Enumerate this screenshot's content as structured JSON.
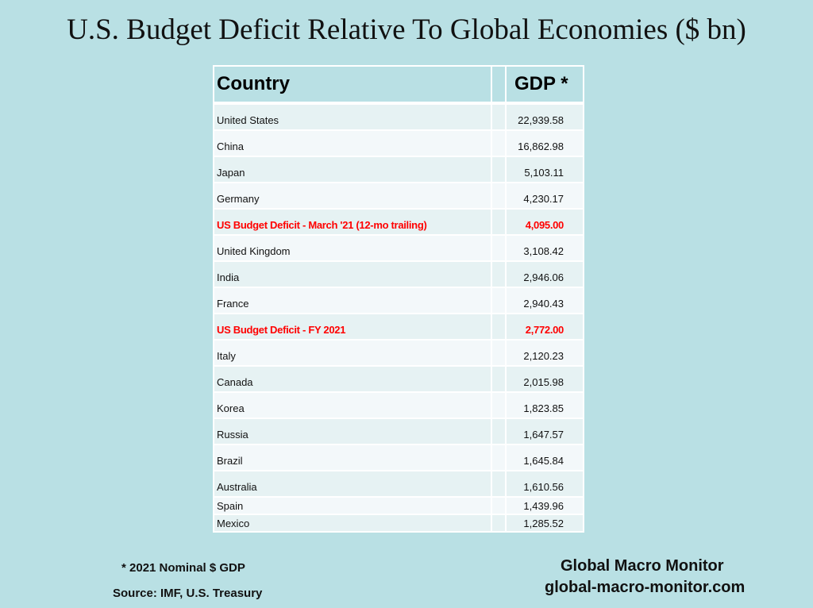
{
  "title": "U.S. Budget Deficit Relative To Global Economies ($ bn)",
  "table": {
    "headers": [
      "Country",
      "",
      "GDP *"
    ],
    "rows": [
      {
        "country": "United States",
        "gdp": "22,939.58",
        "highlight": false
      },
      {
        "country": "China",
        "gdp": "16,862.98",
        "highlight": false
      },
      {
        "country": "Japan",
        "gdp": "5,103.11",
        "highlight": false
      },
      {
        "country": "Germany",
        "gdp": "4,230.17",
        "highlight": false
      },
      {
        "country": "US Budget Deficit - March '21 (12-mo trailing)",
        "gdp": "4,095.00",
        "highlight": true
      },
      {
        "country": "United Kingdom",
        "gdp": "3,108.42",
        "highlight": false
      },
      {
        "country": "India",
        "gdp": "2,946.06",
        "highlight": false
      },
      {
        "country": "France",
        "gdp": "2,940.43",
        "highlight": false
      },
      {
        "country": "US Budget Deficit - FY 2021",
        "gdp": "2,772.00",
        "highlight": true
      },
      {
        "country": "Italy",
        "gdp": "2,120.23",
        "highlight": false
      },
      {
        "country": "Canada",
        "gdp": "2,015.98",
        "highlight": false
      },
      {
        "country": "Korea",
        "gdp": "1,823.85",
        "highlight": false
      },
      {
        "country": "Russia",
        "gdp": "1,647.57",
        "highlight": false
      },
      {
        "country": "Brazil",
        "gdp": "1,645.84",
        "highlight": false
      },
      {
        "country": "Australia",
        "gdp": "1,610.56",
        "highlight": false
      },
      {
        "country": "Spain",
        "gdp": "1,439.96",
        "highlight": false
      },
      {
        "country": "Mexico",
        "gdp": "1,285.52",
        "highlight": false
      }
    ]
  },
  "footnote": "* 2021 Nominal $ GDP",
  "source": "Source: IMF, U.S. Treasury",
  "brand": {
    "name": "Global Macro Monitor",
    "url": "global-macro-monitor.com"
  },
  "colors": {
    "background": "#b9e0e4",
    "highlight": "#ff0000"
  }
}
